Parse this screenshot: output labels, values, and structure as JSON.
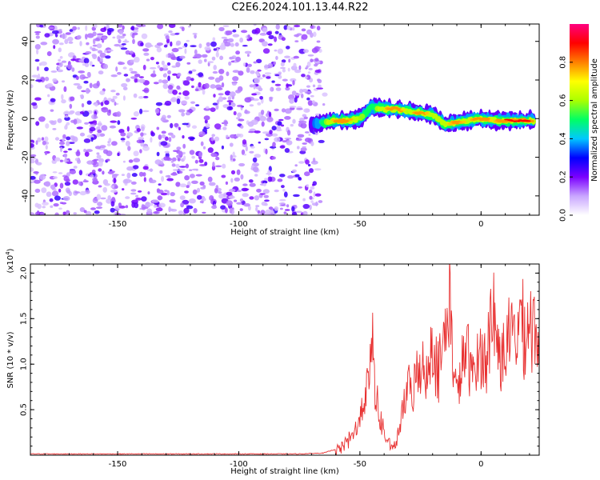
{
  "title": "C2E6.2024.101.13.44.R22",
  "chart_data": [
    {
      "type": "heatmap",
      "xlabel": "Height of straight line (km)",
      "ylabel": "Frequency (Hz)",
      "xlim": [
        -186,
        24
      ],
      "ylim": [
        -50,
        49
      ],
      "xticks": [
        -150,
        -100,
        -50,
        0
      ],
      "yticks": [
        -40,
        -20,
        0,
        20,
        40
      ],
      "colorbar": {
        "label": "Normalized spectral amplitude",
        "range": [
          0,
          1
        ],
        "ticks": [
          "0.0",
          "0.2",
          "0.4",
          "0.6",
          "0.8"
        ],
        "colors": [
          "#ffffff",
          "#c9a6ff",
          "#7b00ff",
          "#0000ff",
          "#00c8ff",
          "#00ff64",
          "#aaff00",
          "#ffff00",
          "#ff8000",
          "#ff0000",
          "#ff0080"
        ]
      },
      "noise_region": {
        "x": [
          -186,
          -66
        ],
        "amplitude": "low (0.0–0.3)"
      },
      "ridge": {
        "x": [
          -70,
          -65,
          -60,
          -55,
          -50,
          -45,
          -40,
          -35,
          -30,
          -25,
          -20,
          -15,
          -10,
          -5,
          0,
          5,
          10,
          15,
          20,
          22
        ],
        "freq_hz": [
          -3,
          -2,
          -1,
          -1,
          0,
          6,
          5,
          5,
          4,
          3,
          2,
          -3,
          -2,
          -1,
          0,
          -1,
          -1,
          -1,
          -1,
          -1
        ],
        "peak_amplitude": [
          0.3,
          0.5,
          0.8,
          0.8,
          0.6,
          0.5,
          0.7,
          0.9,
          0.6,
          0.9,
          0.6,
          0.7,
          0.8,
          0.7,
          0.9,
          0.7,
          0.9,
          0.9,
          0.9,
          0.7
        ]
      }
    },
    {
      "type": "line",
      "xlabel": "Height of straight line (km)",
      "ylabel": "SNR (10 * v/v)",
      "yunit": "(x10",
      "yunit_exp": "4",
      "xlim": [
        -186,
        24
      ],
      "ylim": [
        0,
        2.1
      ],
      "xticks": [
        -150,
        -100,
        -50,
        0
      ],
      "yticks": [
        0.5,
        1.0,
        1.5,
        2.0
      ],
      "ytick_labels": [
        "0.5",
        "1.0",
        "1.5",
        "2.0"
      ],
      "line_color": "#e83030",
      "series": [
        {
          "x": [
            -186,
            -170,
            -150,
            -130,
            -110,
            -90,
            -75,
            -65,
            -58,
            -55,
            -52,
            -50,
            -48,
            -46,
            -45,
            -44,
            -43,
            -42,
            -40,
            -38,
            -36,
            -34,
            -32,
            -30,
            -28,
            -26,
            -24,
            -22,
            -20,
            -18,
            -16,
            -14,
            -13,
            -12,
            -10,
            -8,
            -6,
            -4,
            -2,
            0,
            2,
            4,
            5,
            6,
            8,
            10,
            12,
            14,
            16,
            18,
            20,
            22,
            24
          ],
          "y": [
            0.01,
            0.01,
            0.01,
            0.01,
            0.01,
            0.01,
            0.01,
            0.02,
            0.08,
            0.2,
            0.3,
            0.5,
            0.75,
            0.95,
            1.6,
            1.0,
            0.7,
            0.5,
            0.3,
            0.15,
            0.08,
            0.3,
            0.6,
            0.9,
            0.8,
            1.1,
            1.25,
            0.9,
            1.6,
            1.05,
            1.3,
            1.75,
            2.05,
            1.4,
            0.75,
            1.1,
            1.4,
            1.0,
            1.2,
            1.3,
            1.2,
            1.7,
            2.1,
            1.5,
            1.3,
            1.35,
            1.55,
            1.45,
            1.8,
            1.55,
            1.75,
            1.6,
            1.6
          ]
        }
      ]
    }
  ]
}
